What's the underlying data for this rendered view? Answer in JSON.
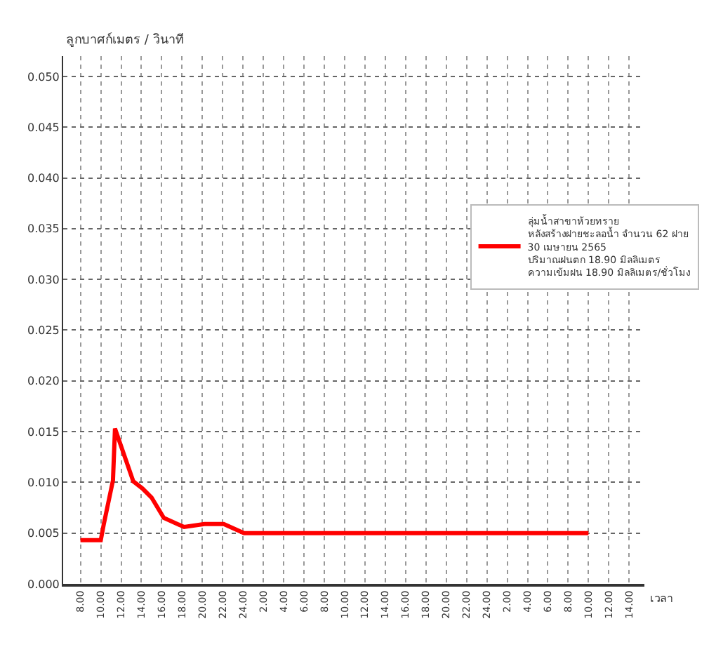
{
  "chart_data": {
    "type": "line",
    "ylabel": "ลูกบาศก์เมตร / วินาที",
    "xlabel": "เวลา",
    "series": [
      {
        "name": "ลุ่มน้ำสาขาห้วยทราย\nหลังสร้างฝายชะลอน้ำ จำนวน 62 ฝาย\n30 เมษายน 2565\nปริมาณฝนตก 18.90 มิลลิเมตร\nความเข้มฝน 18.90 มิลลิเมตร/ชั่วโมง",
        "color": "#ff0000",
        "x": [
          "--04-30T08:00",
          "--04-30T10:00",
          "--04-30T10:18",
          "--04-30T11:12",
          "--04-30T11:24",
          "--04-30T13:12",
          "--04-30T14:06",
          "--04-30T15:00",
          "--04-30T16:12",
          "--04-30T18:12",
          "--04-30T20:12",
          "--04-30T22:06",
          "--05-01T00:06",
          "--05-02T10:00"
        ],
        "values": [
          0.0043,
          0.0043,
          0.0059,
          0.0102,
          0.0153,
          0.0101,
          0.0094,
          0.0085,
          0.0065,
          0.0056,
          0.0059,
          0.0059,
          0.005,
          0.005
        ]
      }
    ],
    "xlim": [
      "--04-30T06:18",
      "--05-02T15:30"
    ],
    "xticks": [
      {
        "value": "--04-30T08:00",
        "label": "8.00"
      },
      {
        "value": "--04-30T10:00",
        "label": "10.00"
      },
      {
        "value": "--04-30T12:00",
        "label": "12.00"
      },
      {
        "value": "--04-30T14:00",
        "label": "14.00"
      },
      {
        "value": "--04-30T16:00",
        "label": "16.00"
      },
      {
        "value": "--04-30T18:00",
        "label": "18.00"
      },
      {
        "value": "--04-30T20:00",
        "label": "20.00"
      },
      {
        "value": "--04-30T22:00",
        "label": "22.00"
      },
      {
        "value": "--05-01T00:00",
        "label": "24.00"
      },
      {
        "value": "--05-01T02:00",
        "label": "2.00"
      },
      {
        "value": "--05-01T04:00",
        "label": "4.00"
      },
      {
        "value": "--05-01T06:00",
        "label": "6.00"
      },
      {
        "value": "--05-01T08:00",
        "label": "8.00"
      },
      {
        "value": "--05-01T10:00",
        "label": "10.00"
      },
      {
        "value": "--05-01T12:00",
        "label": "12.00"
      },
      {
        "value": "--05-01T14:00",
        "label": "14.00"
      },
      {
        "value": "--05-01T16:00",
        "label": "16.00"
      },
      {
        "value": "--05-01T18:00",
        "label": "18.00"
      },
      {
        "value": "--05-01T20:00",
        "label": "20.00"
      },
      {
        "value": "--05-01T22:00",
        "label": "22.00"
      },
      {
        "value": "--05-02T00:00",
        "label": "24.00"
      },
      {
        "value": "--05-02T02:00",
        "label": "2.00"
      },
      {
        "value": "--05-02T04:00",
        "label": "4.00"
      },
      {
        "value": "--05-02T06:00",
        "label": "6.00"
      },
      {
        "value": "--05-02T08:00",
        "label": "8.00"
      },
      {
        "value": "--05-02T10:00",
        "label": "10.00"
      },
      {
        "value": "--05-02T12:00",
        "label": "12.00"
      },
      {
        "value": "--05-02T14:00",
        "label": "14.00"
      }
    ],
    "ylim": [
      0,
      0.052
    ],
    "yticks": [
      {
        "value": 0,
        "label": "0.000"
      },
      {
        "value": 0.005,
        "label": "0.005"
      },
      {
        "value": 0.01,
        "label": "0.010"
      },
      {
        "value": 0.015,
        "label": "0.015"
      },
      {
        "value": 0.02,
        "label": "0.020"
      },
      {
        "value": 0.025,
        "label": "0.025"
      },
      {
        "value": 0.03,
        "label": "0.030"
      },
      {
        "value": 0.035,
        "label": "0.035"
      },
      {
        "value": 0.04,
        "label": "0.040"
      },
      {
        "value": 0.045,
        "label": "0.045"
      },
      {
        "value": 0.05,
        "label": "0.050"
      }
    ],
    "grid": true,
    "legend": "right",
    "marker": "none",
    "line_style": "solid"
  }
}
